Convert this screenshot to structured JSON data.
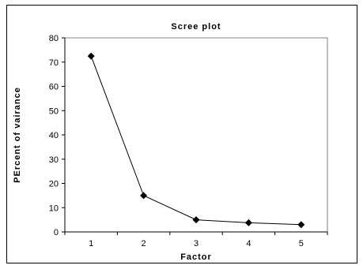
{
  "chart_data": {
    "type": "line",
    "title": "Scree plot",
    "xlabel": "Factor",
    "ylabel": "PErcent of vairance",
    "categories": [
      "1",
      "2",
      "3",
      "4",
      "5"
    ],
    "series": [
      {
        "values": [
          72.5,
          15.0,
          5.0,
          3.8,
          3.0
        ]
      }
    ],
    "ylim": [
      0,
      80
    ],
    "yticks": [
      0,
      10,
      20,
      30,
      40,
      50,
      60,
      70,
      80
    ],
    "grid": false,
    "legend": "none",
    "marker": "diamond",
    "line_color": "#000000"
  }
}
